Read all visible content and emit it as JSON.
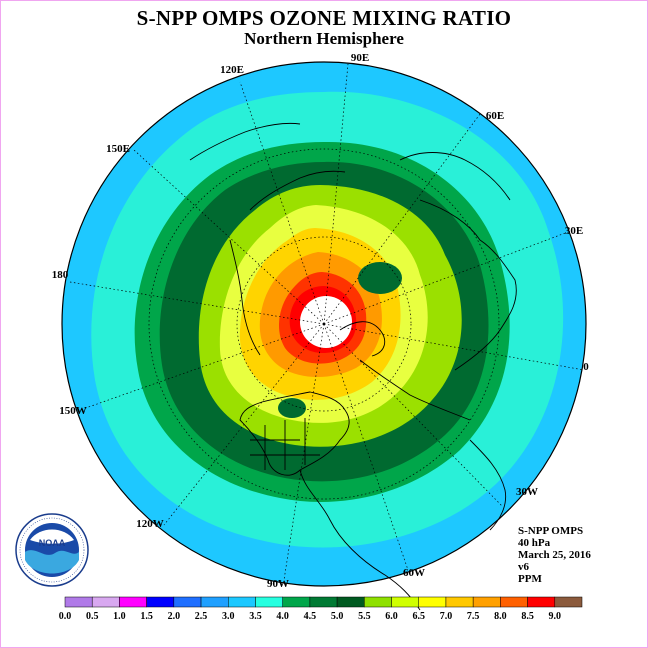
{
  "title": "S-NPP OMPS OZONE MIXING RATIO",
  "subtitle": "Northern Hemisphere",
  "info": {
    "instrument": "S-NPP OMPS",
    "level": "40 hPa",
    "date": "March 25, 2016",
    "version": "v6",
    "units": "PPM"
  },
  "longitude_labels": [
    "90E",
    "60E",
    "30E",
    "0",
    "30W",
    "60W",
    "90W",
    "120W",
    "150W",
    "180",
    "150E",
    "120E"
  ],
  "colorbar": {
    "ticks": [
      "0.0",
      "0.5",
      "1.0",
      "1.5",
      "2.0",
      "2.5",
      "3.0",
      "3.5",
      "4.0",
      "4.5",
      "5.0",
      "5.5",
      "6.0",
      "6.5",
      "7.0",
      "7.5",
      "8.0",
      "8.5",
      "9.0"
    ],
    "colors": [
      "#b07ae8",
      "#d8a8f0",
      "#ff00ff",
      "#0000ff",
      "#1f6fff",
      "#1fa0ff",
      "#1cc8ff",
      "#26ffe0",
      "#00a64a",
      "#007a33",
      "#005a20",
      "#8fe000",
      "#d0ff00",
      "#ffff00",
      "#ffc800",
      "#ffa000",
      "#ff6000",
      "#ff0000",
      "#8b5a3c"
    ]
  },
  "map_colors": {
    "outer": "#1ec8ff",
    "ring1": "#29f0d8",
    "ring2": "#00a64a",
    "ring3": "#006a30",
    "ring4": "#9be000",
    "ring5": "#e8ff40",
    "ring6": "#ffd400",
    "ring7": "#ff9a00",
    "ring8": "#ff3300",
    "core": "#ff0000",
    "pole": "#ffffff"
  },
  "logo_text": "NOAA"
}
